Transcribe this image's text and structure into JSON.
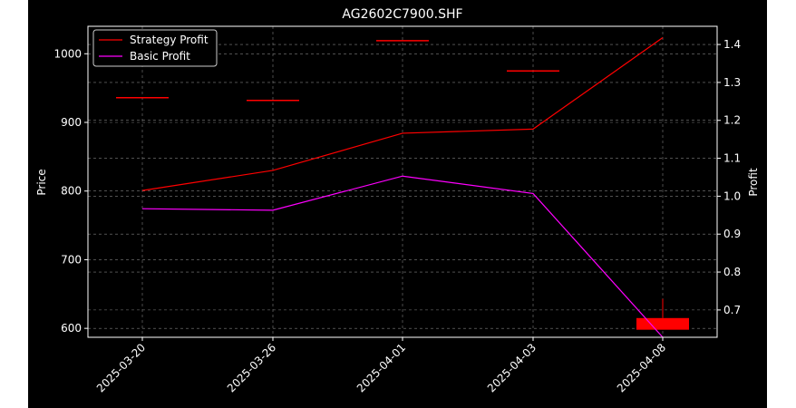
{
  "chart_data": {
    "type": "line",
    "title": "AG2602C7900.SHF",
    "xlabel": "",
    "ylabel": "Price",
    "y2label": "Profit",
    "categories": [
      "2025-03-20",
      "2025-03-26",
      "2025-04-01",
      "2025-04-03",
      "2025-04-08"
    ],
    "ylim": [
      587,
      1040
    ],
    "y2lim": [
      0.628,
      1.448
    ],
    "yticks": [
      600,
      700,
      800,
      900,
      1000
    ],
    "y2ticks": [
      0.7,
      0.8,
      0.9,
      1.0,
      1.1,
      1.2,
      1.3,
      1.4
    ],
    "grid": true,
    "legend_position": "top-left",
    "colors": {
      "background": "#000000",
      "strategy": "#ff0000",
      "basic": "#ff00ff",
      "axis": "#ffffff",
      "grid": "#808080"
    },
    "price_candles": [
      {
        "x": "2025-03-20",
        "open": 936,
        "close": 936,
        "high": 936,
        "low": 936
      },
      {
        "x": "2025-03-26",
        "open": 932,
        "close": 932,
        "high": 932,
        "low": 932
      },
      {
        "x": "2025-04-01",
        "open": 1019,
        "close": 1019,
        "high": 1019,
        "low": 1019
      },
      {
        "x": "2025-04-03",
        "open": 975,
        "close": 975,
        "high": 975,
        "low": 975
      },
      {
        "x": "2025-04-08",
        "open": 615,
        "close": 598,
        "high": 643,
        "low": 598
      }
    ],
    "series": [
      {
        "name": "Strategy Profit",
        "axis": "right",
        "color": "#ff0000",
        "values": [
          1.015,
          1.068,
          1.166,
          1.177,
          1.418
        ]
      },
      {
        "name": "Basic Profit",
        "axis": "right",
        "color": "#ff00ff",
        "values": [
          0.967,
          0.963,
          1.053,
          1.007,
          0.628
        ]
      }
    ]
  }
}
